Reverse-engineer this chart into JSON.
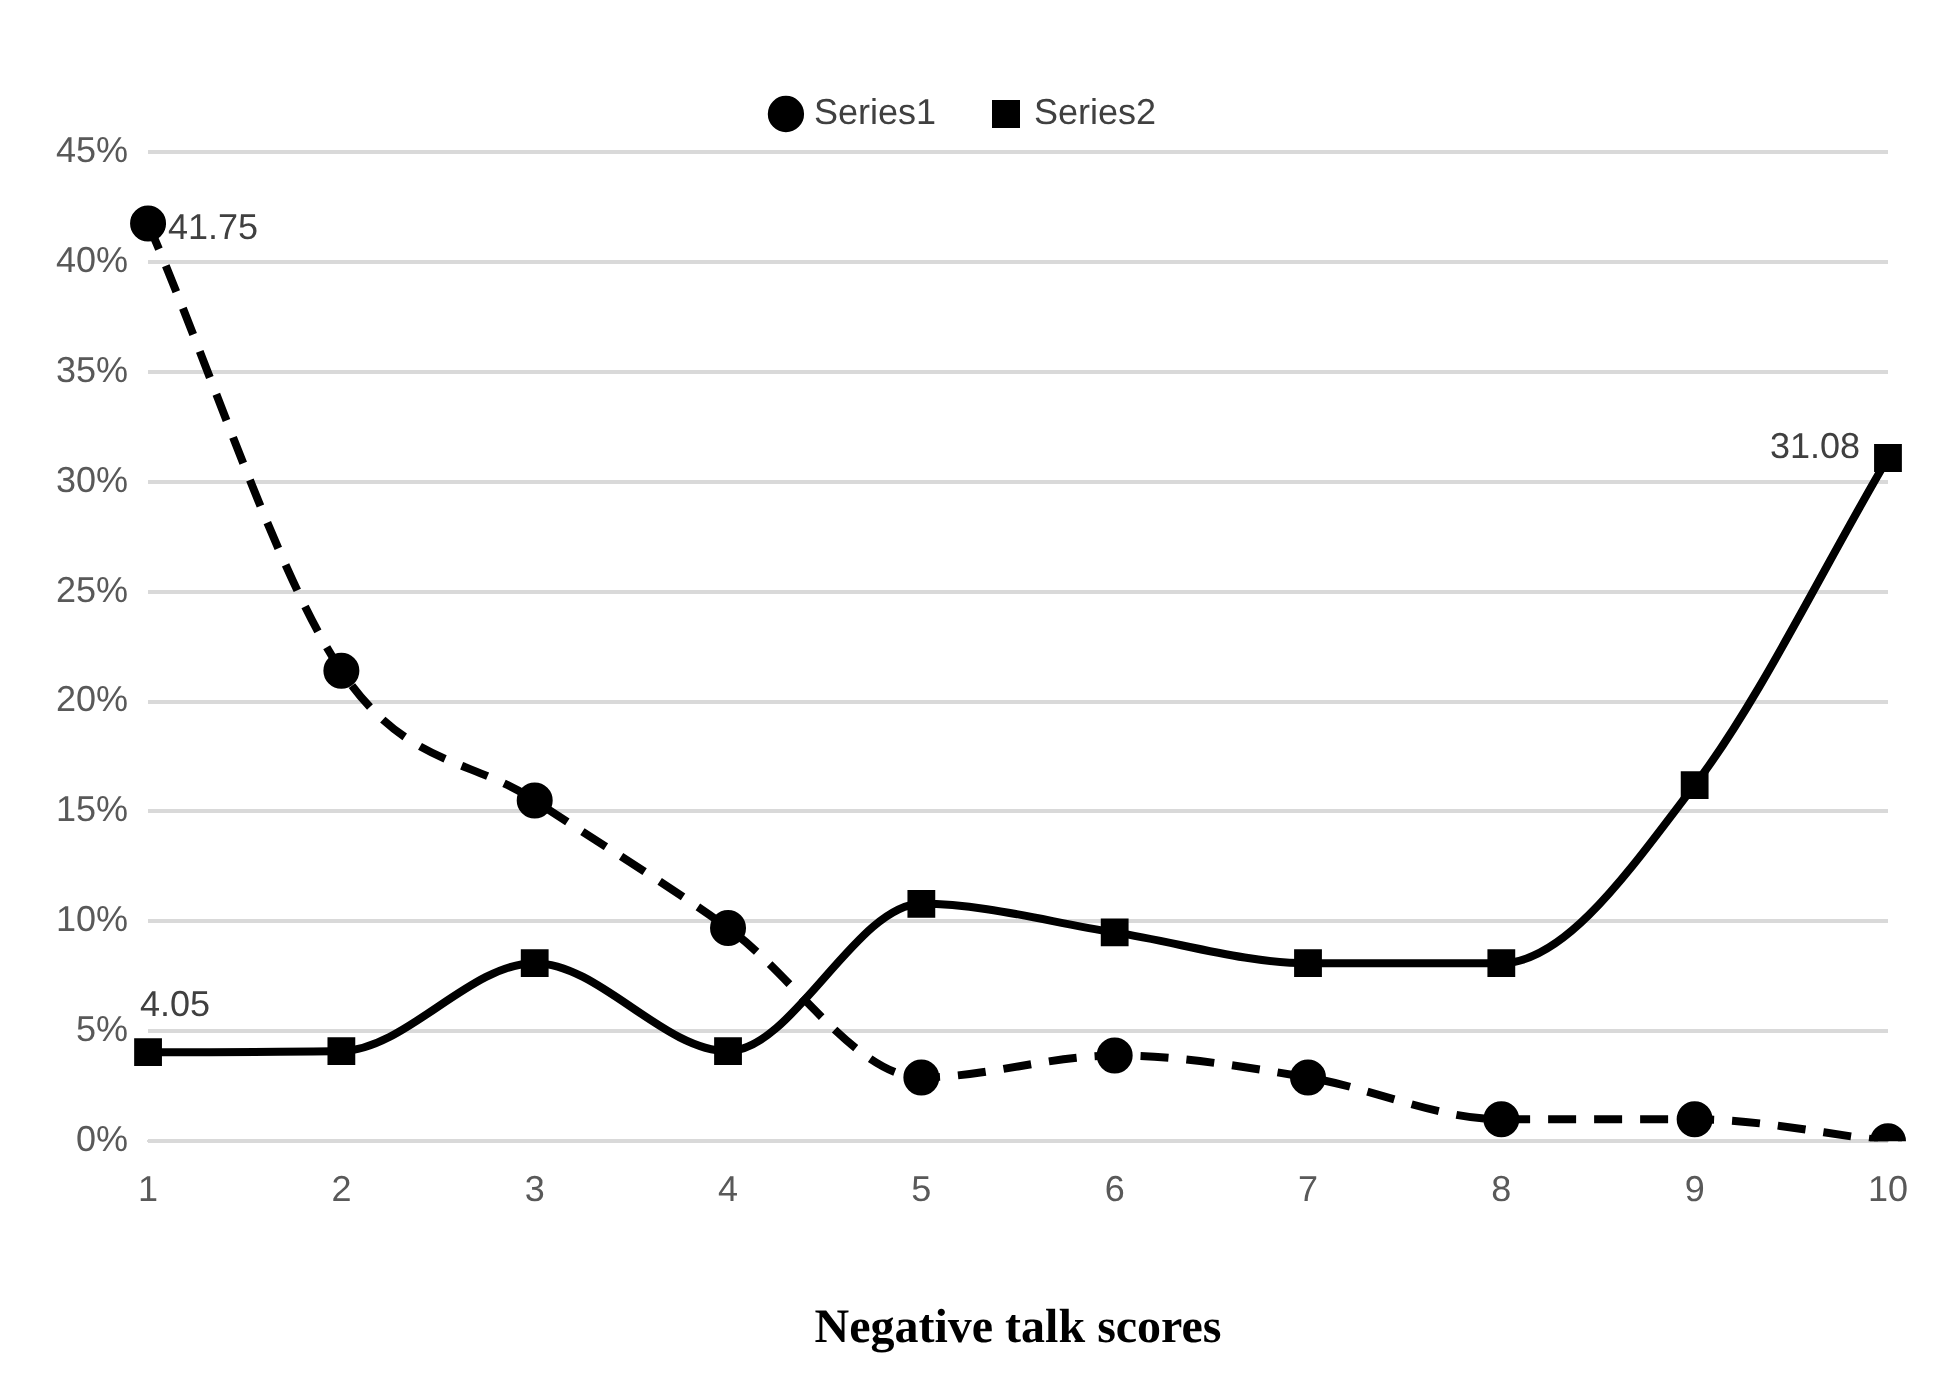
{
  "chart_data": {
    "type": "line",
    "xlabel": "Negative talk scores",
    "categories": [
      "1",
      "2",
      "3",
      "4",
      "5",
      "6",
      "7",
      "8",
      "9",
      "10"
    ],
    "series": [
      {
        "name": "Series1",
        "color": "#000000",
        "marker": "circle",
        "line_style": "dashed",
        "values": [
          41.75,
          21.4,
          15.5,
          9.7,
          2.9,
          3.9,
          2.9,
          1,
          1,
          0
        ],
        "value_labels": [
          "41.75",
          null,
          null,
          null,
          null,
          null,
          null,
          null,
          null,
          null
        ]
      },
      {
        "name": "Series2",
        "color": "#000000",
        "marker": "square",
        "line_style": "solid",
        "values": [
          4.05,
          4.1,
          8.1,
          4.1,
          10.8,
          9.5,
          8.1,
          8.1,
          16.2,
          31.08
        ],
        "value_labels": [
          "4.05",
          null,
          null,
          null,
          null,
          null,
          null,
          null,
          null,
          "31.08"
        ]
      }
    ],
    "ylim": [
      0,
      45
    ],
    "yticks": [
      {
        "value": 0,
        "label": "0%"
      },
      {
        "value": 5,
        "label": "5%"
      },
      {
        "value": 10,
        "label": "10%"
      },
      {
        "value": 15,
        "label": "15%"
      },
      {
        "value": 20,
        "label": "20%"
      },
      {
        "value": 25,
        "label": "25%"
      },
      {
        "value": 30,
        "label": "30%"
      },
      {
        "value": 35,
        "label": "35%"
      },
      {
        "value": 40,
        "label": "40%"
      },
      {
        "value": 45,
        "label": "45%"
      }
    ],
    "grid": "y",
    "legend": "top"
  }
}
